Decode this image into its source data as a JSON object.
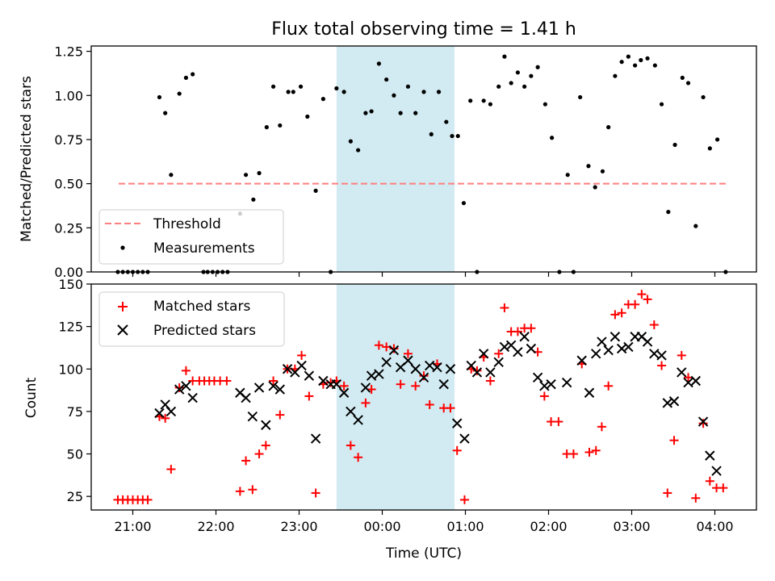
{
  "title": "Flux total observing time = 1.41 h",
  "xlabel": "Time (UTC)",
  "x_ticks": [
    {
      "t": 21.0,
      "label": "21:00"
    },
    {
      "t": 22.0,
      "label": "22:00"
    },
    {
      "t": 23.0,
      "label": "23:00"
    },
    {
      "t": 24.0,
      "label": "00:00"
    },
    {
      "t": 25.0,
      "label": "01:00"
    },
    {
      "t": 26.0,
      "label": "02:00"
    },
    {
      "t": 27.0,
      "label": "03:00"
    },
    {
      "t": 28.0,
      "label": "04:00"
    }
  ],
  "colors": {
    "threshold": "#ff7f7f",
    "measurements": "#000000",
    "matched": "#ff0000",
    "predicted": "#000000",
    "shade": "#add8e6"
  },
  "chart_data": [
    {
      "type": "scatter",
      "ylabel": "Matched/Predicted stars",
      "xlim": [
        20.5,
        28.5
      ],
      "ylim": [
        0,
        1.28
      ],
      "y_ticks": [
        "0.00",
        "0.25",
        "0.50",
        "0.75",
        "1.00",
        "1.25"
      ],
      "shaded_interval": [
        23.45,
        24.87
      ],
      "legend": {
        "position": "lower left",
        "entries": [
          "Threshold",
          "Measurements"
        ]
      },
      "threshold": {
        "name": "Threshold",
        "y": 0.5,
        "x": [
          20.83,
          28.15
        ],
        "style": "dashed"
      },
      "series": [
        {
          "name": "Measurements",
          "marker": "dot",
          "points": [
            [
              20.82,
              0
            ],
            [
              20.88,
              0
            ],
            [
              20.94,
              0
            ],
            [
              21.0,
              0
            ],
            [
              21.06,
              0
            ],
            [
              21.12,
              0
            ],
            [
              21.18,
              0
            ],
            [
              21.32,
              0.99
            ],
            [
              21.39,
              0.9
            ],
            [
              21.46,
              0.55
            ],
            [
              21.56,
              1.01
            ],
            [
              21.64,
              1.1
            ],
            [
              21.72,
              1.12
            ],
            [
              21.85,
              0
            ],
            [
              21.9,
              0
            ],
            [
              21.96,
              0
            ],
            [
              22.02,
              0
            ],
            [
              22.08,
              0
            ],
            [
              22.14,
              0
            ],
            [
              22.29,
              0.33
            ],
            [
              22.36,
              0.55
            ],
            [
              22.45,
              0.41
            ],
            [
              22.52,
              0.56
            ],
            [
              22.61,
              0.82
            ],
            [
              22.69,
              1.05
            ],
            [
              22.77,
              0.83
            ],
            [
              22.87,
              1.02
            ],
            [
              22.93,
              1.02
            ],
            [
              23.02,
              1.05
            ],
            [
              23.1,
              0.88
            ],
            [
              23.2,
              0.46
            ],
            [
              23.29,
              0.98
            ],
            [
              23.38,
              0
            ],
            [
              23.45,
              1.04
            ],
            [
              23.54,
              1.02
            ],
            [
              23.62,
              0.74
            ],
            [
              23.71,
              0.69
            ],
            [
              23.8,
              0.9
            ],
            [
              23.87,
              0.91
            ],
            [
              23.96,
              1.18
            ],
            [
              24.05,
              1.09
            ],
            [
              24.14,
              1.0
            ],
            [
              24.22,
              0.9
            ],
            [
              24.31,
              1.05
            ],
            [
              24.4,
              0.9
            ],
            [
              24.5,
              1.02
            ],
            [
              24.59,
              0.78
            ],
            [
              24.68,
              1.02
            ],
            [
              24.77,
              0.85
            ],
            [
              24.84,
              0.77
            ],
            [
              24.91,
              0.77
            ],
            [
              24.98,
              0.39
            ],
            [
              25.06,
              0.97
            ],
            [
              25.14,
              0
            ],
            [
              25.22,
              0.97
            ],
            [
              25.3,
              0.95
            ],
            [
              25.4,
              1.05
            ],
            [
              25.47,
              1.22
            ],
            [
              25.55,
              1.07
            ],
            [
              25.63,
              1.13
            ],
            [
              25.71,
              1.05
            ],
            [
              25.79,
              1.11
            ],
            [
              25.87,
              1.16
            ],
            [
              25.96,
              0.95
            ],
            [
              26.04,
              0.76
            ],
            [
              26.13,
              0
            ],
            [
              26.23,
              0.55
            ],
            [
              26.3,
              0
            ],
            [
              26.38,
              0.99
            ],
            [
              26.48,
              0.6
            ],
            [
              26.56,
              0.48
            ],
            [
              26.65,
              0.57
            ],
            [
              26.72,
              0.82
            ],
            [
              26.8,
              1.11
            ],
            [
              26.88,
              1.19
            ],
            [
              26.96,
              1.22
            ],
            [
              27.04,
              1.17
            ],
            [
              27.11,
              1.2
            ],
            [
              27.19,
              1.21
            ],
            [
              27.28,
              1.17
            ],
            [
              27.36,
              0.95
            ],
            [
              27.44,
              0.34
            ],
            [
              27.52,
              0.72
            ],
            [
              27.61,
              1.1
            ],
            [
              27.68,
              1.07
            ],
            [
              27.77,
              0.26
            ],
            [
              27.86,
              0.99
            ],
            [
              27.94,
              0.7
            ],
            [
              28.03,
              0.75
            ],
            [
              28.13,
              0
            ]
          ]
        }
      ]
    },
    {
      "type": "scatter",
      "ylabel": "Count",
      "xlabel": "Time (UTC)",
      "xlim": [
        20.5,
        28.5
      ],
      "ylim": [
        17,
        150
      ],
      "y_ticks": [
        "25",
        "50",
        "75",
        "100",
        "125",
        "150"
      ],
      "shaded_interval": [
        23.45,
        24.87
      ],
      "legend": {
        "position": "upper left",
        "entries": [
          "Matched stars",
          "Predicted stars"
        ]
      },
      "series": [
        {
          "name": "Matched stars",
          "marker": "plus",
          "points": [
            [
              20.82,
              23
            ],
            [
              20.88,
              23
            ],
            [
              20.94,
              23
            ],
            [
              21.0,
              23
            ],
            [
              21.06,
              23
            ],
            [
              21.12,
              23
            ],
            [
              21.18,
              23
            ],
            [
              21.32,
              72
            ],
            [
              21.39,
              71
            ],
            [
              21.46,
              41
            ],
            [
              21.56,
              89
            ],
            [
              21.64,
              99
            ],
            [
              21.72,
              93
            ],
            [
              21.8,
              93
            ],
            [
              21.86,
              93
            ],
            [
              21.92,
              93
            ],
            [
              21.98,
              93
            ],
            [
              22.05,
              93
            ],
            [
              22.13,
              93
            ],
            [
              22.29,
              28
            ],
            [
              22.36,
              46
            ],
            [
              22.44,
              29
            ],
            [
              22.52,
              50
            ],
            [
              22.6,
              55
            ],
            [
              22.69,
              93
            ],
            [
              22.77,
              73
            ],
            [
              22.86,
              100
            ],
            [
              22.95,
              100
            ],
            [
              23.03,
              108
            ],
            [
              23.12,
              84
            ],
            [
              23.2,
              27
            ],
            [
              23.29,
              91
            ],
            [
              23.38,
              92
            ],
            [
              23.45,
              93
            ],
            [
              23.54,
              90
            ],
            [
              23.62,
              55
            ],
            [
              23.71,
              48
            ],
            [
              23.8,
              80
            ],
            [
              23.87,
              88
            ],
            [
              23.96,
              114
            ],
            [
              24.05,
              113
            ],
            [
              24.14,
              112
            ],
            [
              24.22,
              91
            ],
            [
              24.31,
              109
            ],
            [
              24.4,
              90
            ],
            [
              24.5,
              96
            ],
            [
              24.57,
              79
            ],
            [
              24.66,
              103
            ],
            [
              24.74,
              77
            ],
            [
              24.82,
              77
            ],
            [
              24.9,
              52
            ],
            [
              24.99,
              23
            ],
            [
              25.07,
              100
            ],
            [
              25.14,
              99
            ],
            [
              25.22,
              107
            ],
            [
              25.3,
              93
            ],
            [
              25.4,
              109
            ],
            [
              25.47,
              136
            ],
            [
              25.55,
              122
            ],
            [
              25.63,
              122
            ],
            [
              25.71,
              124
            ],
            [
              25.79,
              124
            ],
            [
              25.87,
              110
            ],
            [
              25.95,
              84
            ],
            [
              26.03,
              69
            ],
            [
              26.12,
              69
            ],
            [
              26.22,
              50
            ],
            [
              26.3,
              50
            ],
            [
              26.4,
              103
            ],
            [
              26.49,
              51
            ],
            [
              26.57,
              52
            ],
            [
              26.64,
              66
            ],
            [
              26.72,
              90
            ],
            [
              26.8,
              132
            ],
            [
              26.88,
              133
            ],
            [
              26.96,
              138
            ],
            [
              27.04,
              138
            ],
            [
              27.12,
              144
            ],
            [
              27.19,
              141
            ],
            [
              27.27,
              126
            ],
            [
              27.36,
              102
            ],
            [
              27.43,
              27
            ],
            [
              27.51,
              58
            ],
            [
              27.6,
              108
            ],
            [
              27.68,
              95
            ],
            [
              27.77,
              24
            ],
            [
              27.86,
              68
            ],
            [
              27.94,
              34
            ],
            [
              28.02,
              30
            ],
            [
              28.1,
              30
            ]
          ]
        },
        {
          "name": "Predicted stars",
          "marker": "x",
          "points": [
            [
              21.32,
              74
            ],
            [
              21.39,
              79
            ],
            [
              21.46,
              75
            ],
            [
              21.56,
              88
            ],
            [
              21.64,
              90
            ],
            [
              21.72,
              83
            ],
            [
              22.29,
              86
            ],
            [
              22.36,
              83
            ],
            [
              22.44,
              72
            ],
            [
              22.52,
              89
            ],
            [
              22.6,
              67
            ],
            [
              22.69,
              90
            ],
            [
              22.77,
              88
            ],
            [
              22.86,
              100
            ],
            [
              22.95,
              98
            ],
            [
              23.03,
              102
            ],
            [
              23.12,
              96
            ],
            [
              23.2,
              59
            ],
            [
              23.29,
              93
            ],
            [
              23.38,
              91
            ],
            [
              23.45,
              91
            ],
            [
              23.54,
              86
            ],
            [
              23.62,
              75
            ],
            [
              23.71,
              70
            ],
            [
              23.8,
              89
            ],
            [
              23.87,
              96
            ],
            [
              23.96,
              97
            ],
            [
              24.05,
              104
            ],
            [
              24.14,
              111
            ],
            [
              24.22,
              101
            ],
            [
              24.31,
              105
            ],
            [
              24.4,
              100
            ],
            [
              24.5,
              95
            ],
            [
              24.57,
              102
            ],
            [
              24.66,
              101
            ],
            [
              24.74,
              91
            ],
            [
              24.82,
              100
            ],
            [
              24.9,
              68
            ],
            [
              24.99,
              59
            ],
            [
              25.07,
              102
            ],
            [
              25.14,
              98
            ],
            [
              25.22,
              109
            ],
            [
              25.3,
              98
            ],
            [
              25.4,
              104
            ],
            [
              25.47,
              113
            ],
            [
              25.55,
              114
            ],
            [
              25.63,
              110
            ],
            [
              25.71,
              119
            ],
            [
              25.79,
              112
            ],
            [
              25.87,
              95
            ],
            [
              25.95,
              90
            ],
            [
              26.03,
              91
            ],
            [
              26.22,
              92
            ],
            [
              26.4,
              105
            ],
            [
              26.49,
              86
            ],
            [
              26.57,
              109
            ],
            [
              26.64,
              116
            ],
            [
              26.72,
              111
            ],
            [
              26.8,
              119
            ],
            [
              26.88,
              112
            ],
            [
              26.96,
              113
            ],
            [
              27.04,
              119
            ],
            [
              27.12,
              119
            ],
            [
              27.19,
              116
            ],
            [
              27.27,
              109
            ],
            [
              27.36,
              108
            ],
            [
              27.43,
              80
            ],
            [
              27.51,
              81
            ],
            [
              27.6,
              98
            ],
            [
              27.68,
              92
            ],
            [
              27.77,
              93
            ],
            [
              27.86,
              69
            ],
            [
              27.94,
              49
            ],
            [
              28.02,
              40
            ]
          ]
        }
      ]
    }
  ]
}
